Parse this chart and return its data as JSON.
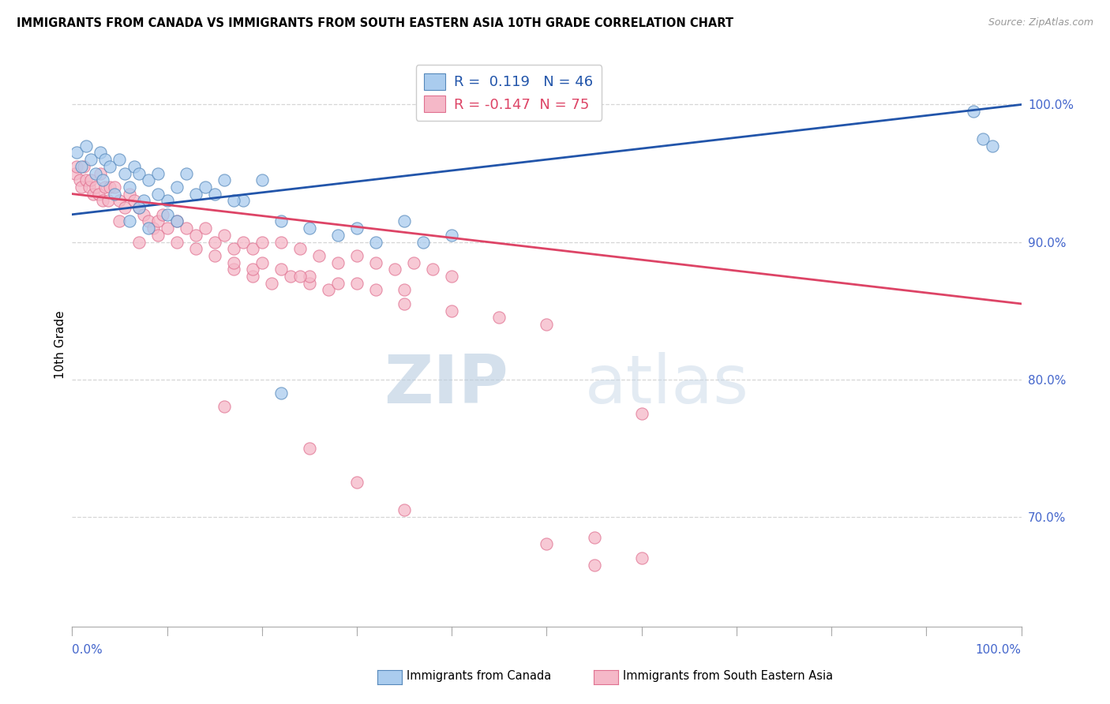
{
  "title": "IMMIGRANTS FROM CANADA VS IMMIGRANTS FROM SOUTH EASTERN ASIA 10TH GRADE CORRELATION CHART",
  "source": "Source: ZipAtlas.com",
  "ylabel": "10th Grade",
  "right_ytick_values": [
    70.0,
    80.0,
    90.0,
    100.0
  ],
  "right_ytick_labels": [
    "70.0%",
    "80.0%",
    "90.0%",
    "100.0%"
  ],
  "legend_blue_label": "Immigrants from Canada",
  "legend_pink_label": "Immigrants from South Eastern Asia",
  "R_blue": 0.119,
  "N_blue": 46,
  "R_pink": -0.147,
  "N_pink": 75,
  "blue_fill_color": "#aaccee",
  "pink_fill_color": "#f5b8c8",
  "blue_edge_color": "#5588bb",
  "pink_edge_color": "#e07090",
  "trend_blue_color": "#2255aa",
  "trend_pink_color": "#dd4466",
  "blue_trend_start_y": 92.0,
  "blue_trend_end_y": 100.0,
  "pink_trend_start_y": 93.5,
  "pink_trend_end_y": 85.5,
  "blue_scatter_x": [
    0.5,
    1.0,
    1.5,
    2.0,
    2.5,
    3.0,
    3.2,
    3.5,
    4.0,
    4.5,
    5.0,
    5.5,
    6.0,
    6.5,
    7.0,
    7.5,
    8.0,
    9.0,
    10.0,
    11.0,
    12.0,
    13.0,
    14.0,
    16.0,
    18.0,
    20.0,
    22.0,
    25.0,
    28.0,
    30.0,
    32.0,
    35.0,
    37.0,
    40.0,
    15.0,
    17.0,
    6.0,
    7.0,
    8.0,
    9.0,
    10.0,
    11.0,
    22.0,
    95.0,
    96.0,
    97.0
  ],
  "blue_scatter_y": [
    96.5,
    95.5,
    97.0,
    96.0,
    95.0,
    96.5,
    94.5,
    96.0,
    95.5,
    93.5,
    96.0,
    95.0,
    94.0,
    95.5,
    95.0,
    93.0,
    94.5,
    95.0,
    93.0,
    94.0,
    95.0,
    93.5,
    94.0,
    94.5,
    93.0,
    94.5,
    79.0,
    91.0,
    90.5,
    91.0,
    90.0,
    91.5,
    90.0,
    90.5,
    93.5,
    93.0,
    91.5,
    92.5,
    91.0,
    93.5,
    92.0,
    91.5,
    91.5,
    99.5,
    97.5,
    97.0
  ],
  "pink_scatter_x": [
    0.3,
    0.5,
    0.8,
    1.0,
    1.2,
    1.5,
    1.8,
    2.0,
    2.2,
    2.5,
    2.8,
    3.0,
    3.2,
    3.5,
    3.8,
    4.0,
    4.5,
    5.0,
    5.5,
    6.0,
    6.5,
    7.0,
    7.5,
    8.0,
    8.5,
    9.0,
    9.5,
    10.0,
    11.0,
    12.0,
    13.0,
    14.0,
    15.0,
    16.0,
    17.0,
    18.0,
    19.0,
    20.0,
    22.0,
    24.0,
    26.0,
    28.0,
    30.0,
    32.0,
    34.0,
    36.0,
    38.0,
    40.0,
    17.0,
    19.0,
    21.0,
    23.0,
    25.0,
    27.0,
    5.0,
    7.0,
    9.0,
    11.0,
    13.0,
    15.0,
    17.0,
    19.0,
    25.0,
    30.0,
    35.0,
    20.0,
    22.0,
    24.0,
    28.0,
    32.0,
    60.0,
    35.0,
    40.0,
    45.0,
    50.0
  ],
  "pink_scatter_y": [
    95.0,
    95.5,
    94.5,
    94.0,
    95.5,
    94.5,
    94.0,
    94.5,
    93.5,
    94.0,
    93.5,
    95.0,
    93.0,
    94.0,
    93.0,
    94.0,
    94.0,
    93.0,
    92.5,
    93.5,
    93.0,
    92.5,
    92.0,
    91.5,
    91.0,
    91.5,
    92.0,
    91.0,
    91.5,
    91.0,
    90.5,
    91.0,
    90.0,
    90.5,
    89.5,
    90.0,
    89.5,
    90.0,
    90.0,
    89.5,
    89.0,
    88.5,
    89.0,
    88.5,
    88.0,
    88.5,
    88.0,
    87.5,
    88.0,
    87.5,
    87.0,
    87.5,
    87.0,
    86.5,
    91.5,
    90.0,
    90.5,
    90.0,
    89.5,
    89.0,
    88.5,
    88.0,
    87.5,
    87.0,
    86.5,
    88.5,
    88.0,
    87.5,
    87.0,
    86.5,
    77.5,
    85.5,
    85.0,
    84.5,
    84.0
  ],
  "pink_outlier_x": [
    16.0,
    25.0,
    30.0,
    35.0,
    50.0,
    55.0,
    60.0
  ],
  "pink_outlier_y": [
    78.0,
    75.0,
    72.5,
    70.5,
    68.0,
    68.5,
    67.0
  ],
  "pink_lowest_x": [
    55.0
  ],
  "pink_lowest_y": [
    66.5
  ],
  "watermark_zip": "ZIP",
  "watermark_atlas": "atlas",
  "background_color": "#ffffff",
  "grid_color": "#cccccc",
  "xlim": [
    0,
    100
  ],
  "ylim": [
    62,
    103
  ]
}
